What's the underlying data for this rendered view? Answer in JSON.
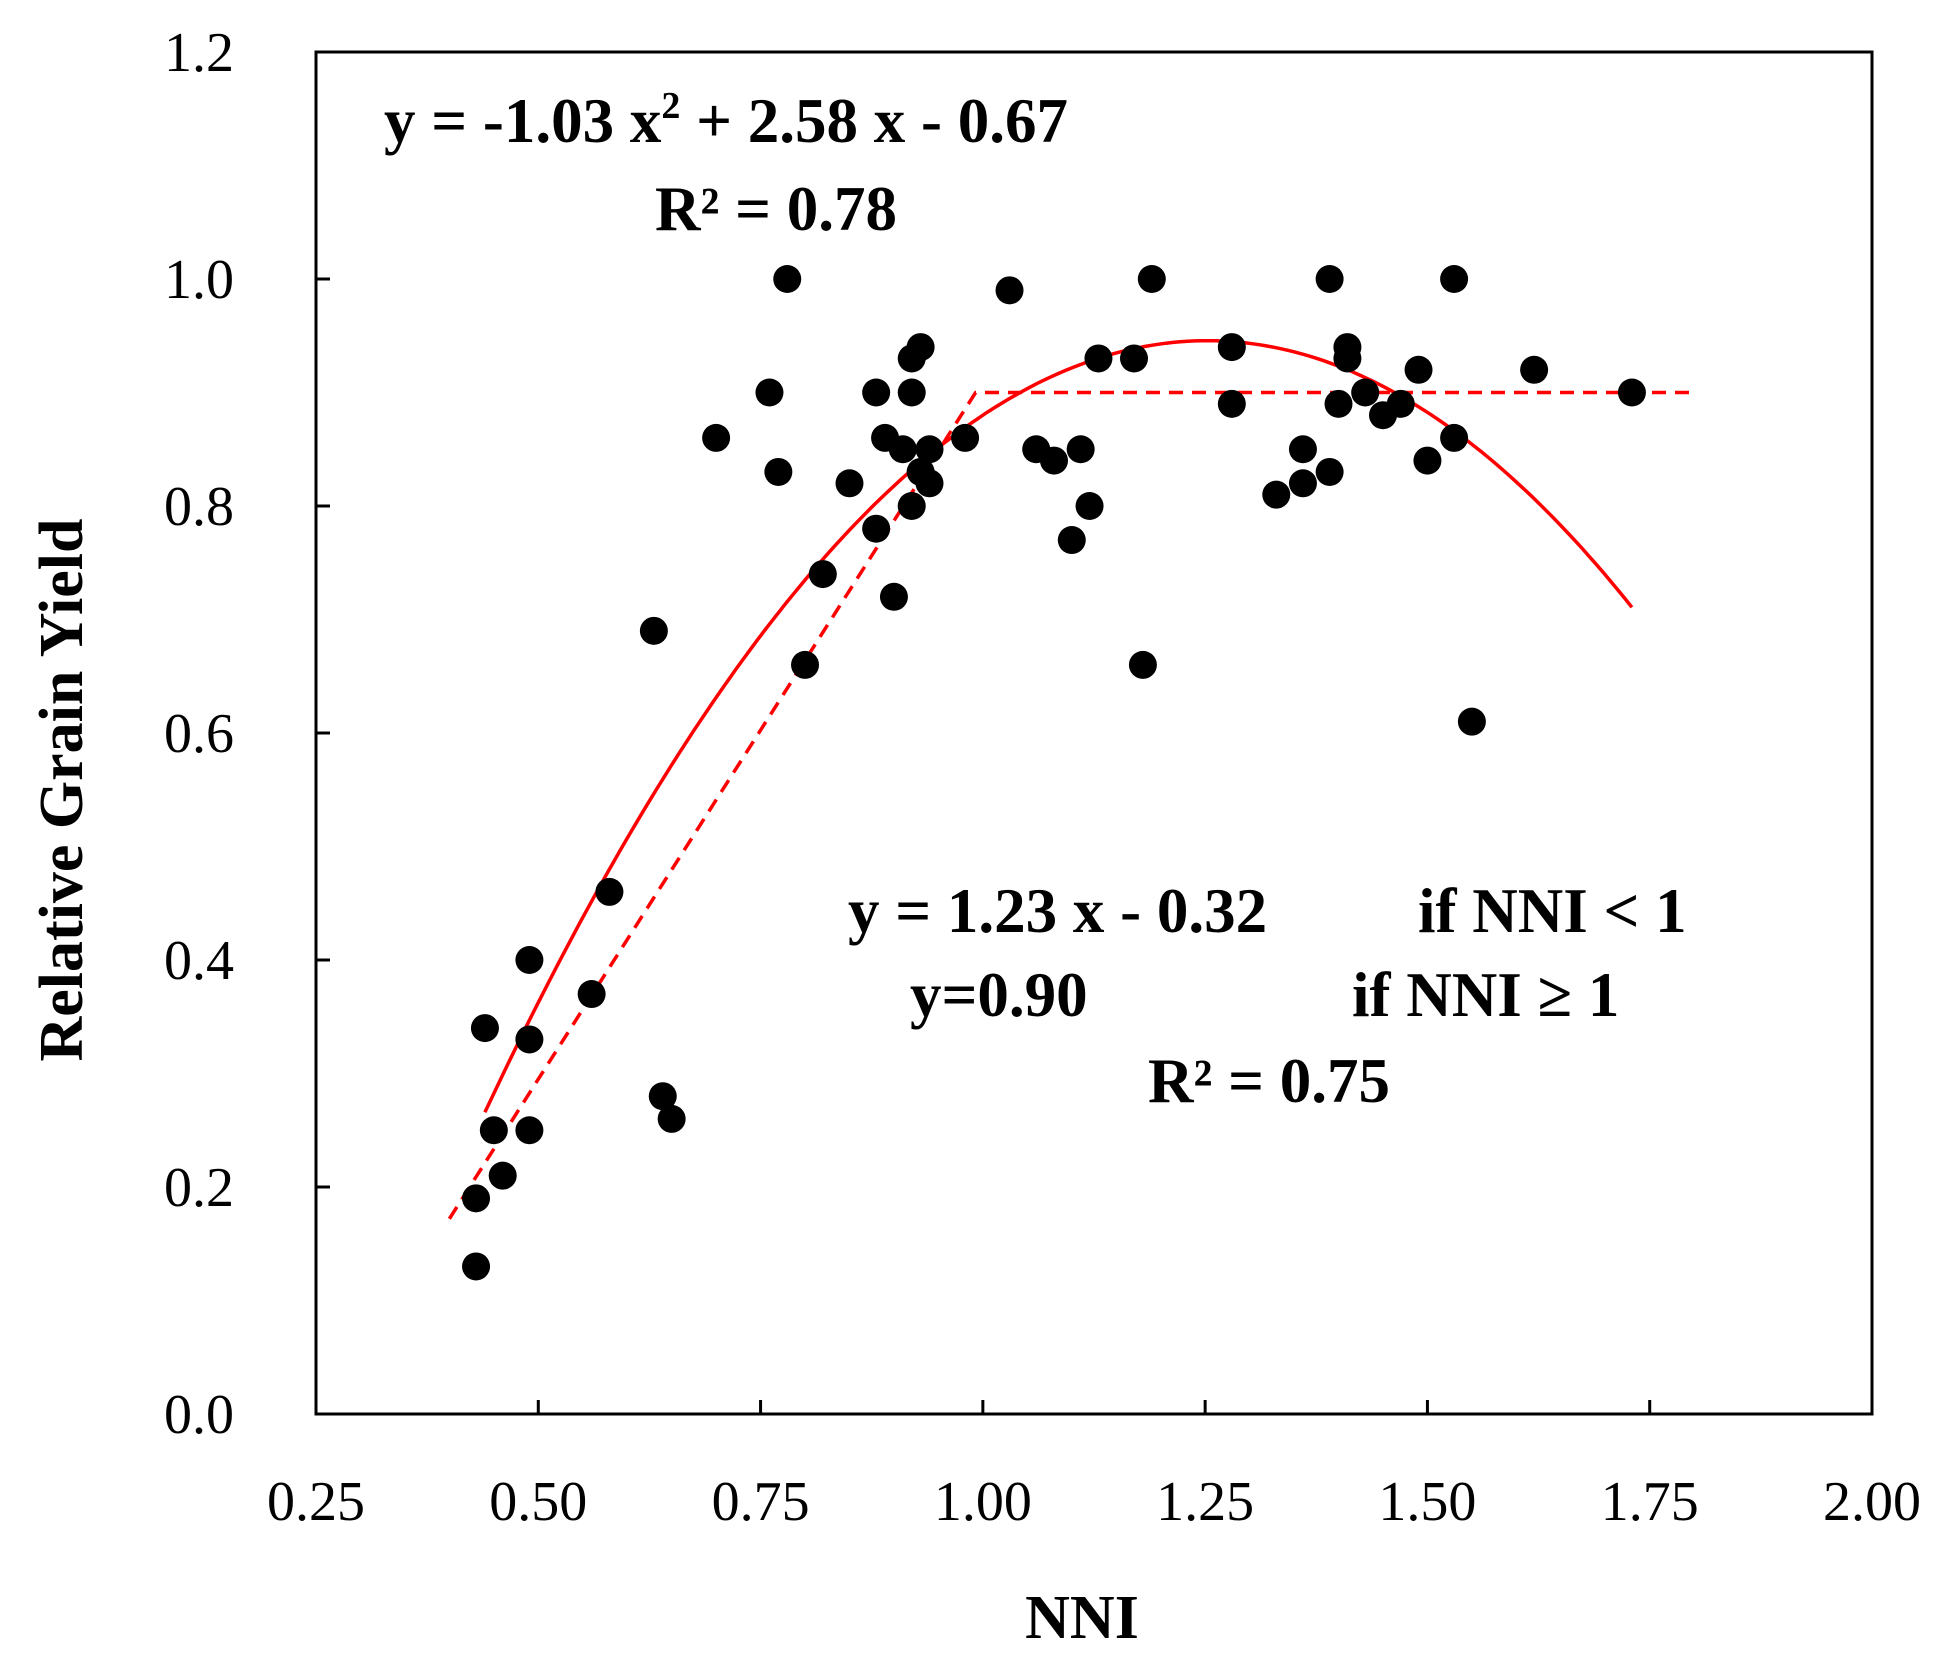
{
  "chart_data": {
    "type": "scatter",
    "title": "",
    "xlabel": "NNI",
    "ylabel": "Relative Grain Yield",
    "xlim": [
      0.25,
      2.0
    ],
    "ylim": [
      0.0,
      1.2
    ],
    "xticks": [
      "0.25",
      "0.50",
      "0.75",
      "1.00",
      "1.25",
      "1.50",
      "1.75",
      "2.00"
    ],
    "yticks": [
      "0.0",
      "0.2",
      "0.4",
      "0.6",
      "0.8",
      "1.0",
      "1.2"
    ],
    "grid": false,
    "point_color": "#000000",
    "fit_color": "#ff0000",
    "points": [
      {
        "x": 0.43,
        "y": 0.13
      },
      {
        "x": 0.43,
        "y": 0.19
      },
      {
        "x": 0.44,
        "y": 0.34
      },
      {
        "x": 0.45,
        "y": 0.25
      },
      {
        "x": 0.46,
        "y": 0.21
      },
      {
        "x": 0.49,
        "y": 0.4
      },
      {
        "x": 0.49,
        "y": 0.33
      },
      {
        "x": 0.49,
        "y": 0.25
      },
      {
        "x": 0.56,
        "y": 0.37
      },
      {
        "x": 0.58,
        "y": 0.46
      },
      {
        "x": 0.63,
        "y": 0.69
      },
      {
        "x": 0.64,
        "y": 0.28
      },
      {
        "x": 0.65,
        "y": 0.26
      },
      {
        "x": 0.7,
        "y": 0.86
      },
      {
        "x": 0.76,
        "y": 0.9
      },
      {
        "x": 0.77,
        "y": 0.83
      },
      {
        "x": 0.78,
        "y": 1.0
      },
      {
        "x": 0.8,
        "y": 0.66
      },
      {
        "x": 0.82,
        "y": 0.74
      },
      {
        "x": 0.85,
        "y": 0.82
      },
      {
        "x": 0.88,
        "y": 0.9
      },
      {
        "x": 0.88,
        "y": 0.78
      },
      {
        "x": 0.89,
        "y": 0.86
      },
      {
        "x": 0.9,
        "y": 0.72
      },
      {
        "x": 0.91,
        "y": 0.85
      },
      {
        "x": 0.92,
        "y": 0.9
      },
      {
        "x": 0.92,
        "y": 0.93
      },
      {
        "x": 0.92,
        "y": 0.8
      },
      {
        "x": 0.93,
        "y": 0.94
      },
      {
        "x": 0.93,
        "y": 0.83
      },
      {
        "x": 0.94,
        "y": 0.85
      },
      {
        "x": 0.94,
        "y": 0.82
      },
      {
        "x": 0.98,
        "y": 0.86
      },
      {
        "x": 1.03,
        "y": 0.99
      },
      {
        "x": 1.06,
        "y": 0.85
      },
      {
        "x": 1.08,
        "y": 0.84
      },
      {
        "x": 1.1,
        "y": 0.77
      },
      {
        "x": 1.11,
        "y": 0.85
      },
      {
        "x": 1.12,
        "y": 0.8
      },
      {
        "x": 1.13,
        "y": 0.93
      },
      {
        "x": 1.17,
        "y": 0.93
      },
      {
        "x": 1.18,
        "y": 0.66
      },
      {
        "x": 1.19,
        "y": 1.0
      },
      {
        "x": 1.28,
        "y": 0.94
      },
      {
        "x": 1.28,
        "y": 0.89
      },
      {
        "x": 1.33,
        "y": 0.81
      },
      {
        "x": 1.36,
        "y": 0.82
      },
      {
        "x": 1.36,
        "y": 0.85
      },
      {
        "x": 1.39,
        "y": 1.0
      },
      {
        "x": 1.39,
        "y": 0.83
      },
      {
        "x": 1.4,
        "y": 0.89
      },
      {
        "x": 1.41,
        "y": 0.93
      },
      {
        "x": 1.41,
        "y": 0.94
      },
      {
        "x": 1.43,
        "y": 0.9
      },
      {
        "x": 1.45,
        "y": 0.88
      },
      {
        "x": 1.47,
        "y": 0.89
      },
      {
        "x": 1.49,
        "y": 0.92
      },
      {
        "x": 1.5,
        "y": 0.84
      },
      {
        "x": 1.53,
        "y": 1.0
      },
      {
        "x": 1.53,
        "y": 0.86
      },
      {
        "x": 1.55,
        "y": 0.61
      },
      {
        "x": 1.62,
        "y": 0.92
      },
      {
        "x": 1.73,
        "y": 0.9
      }
    ],
    "fits": [
      {
        "name": "quadratic",
        "style": "solid",
        "a": -1.03,
        "b": 2.58,
        "c": -0.67,
        "x_range": [
          0.44,
          1.73
        ]
      },
      {
        "name": "linear-plateau",
        "style": "dashed",
        "slope": 1.23,
        "intercept": -0.32,
        "plateau": 0.9,
        "x_range": [
          0.4,
          1.8
        ]
      }
    ],
    "annotations": {
      "quad_eq_prefix": "y = -1.03 x",
      "quad_eq_sup": "2",
      "quad_eq_suffix": " + 2.58 x - 0.67",
      "quad_r2": "R² = 0.78",
      "lp_eq1": "y = 1.23 x - 0.32",
      "lp_cond1": "if NNI < 1",
      "lp_eq2": "y=0.90",
      "lp_cond2": "if NNI ≥ 1",
      "lp_r2": "R² = 0.75"
    }
  }
}
